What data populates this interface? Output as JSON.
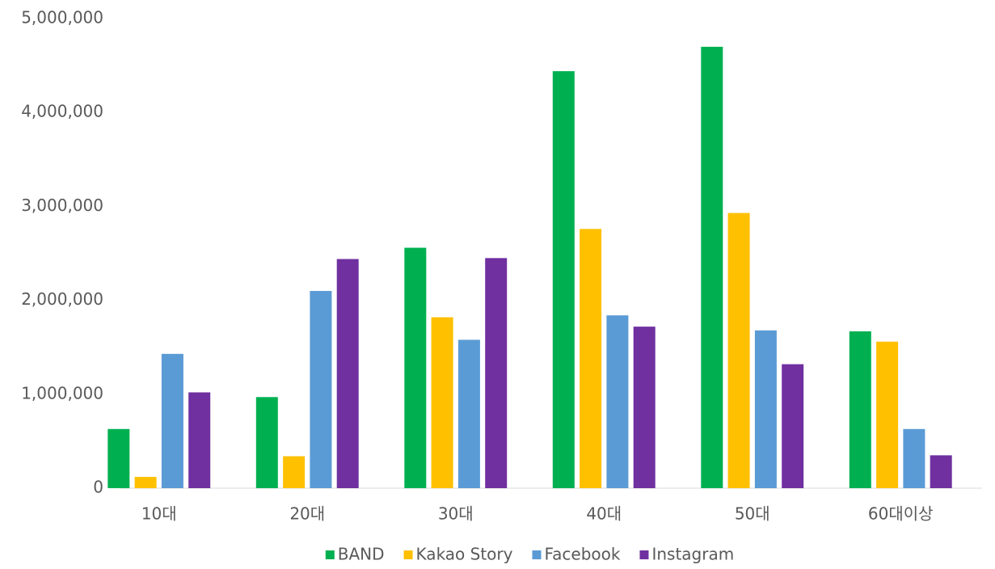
{
  "chart_data": {
    "type": "bar",
    "categories": [
      "10대",
      "20대",
      "30대",
      "40대",
      "50대",
      "60대이상"
    ],
    "series": [
      {
        "name": "BAND",
        "color": "#00b050",
        "values": [
          630000,
          970000,
          2560000,
          4440000,
          4700000,
          1670000
        ]
      },
      {
        "name": "Kakao Story",
        "color": "#ffc000",
        "values": [
          120000,
          340000,
          1820000,
          2760000,
          2930000,
          1560000
        ]
      },
      {
        "name": "Facebook",
        "color": "#5b9bd5",
        "values": [
          1430000,
          2100000,
          1580000,
          1840000,
          1680000,
          630000
        ]
      },
      {
        "name": "Instagram",
        "color": "#7030a0",
        "values": [
          1020000,
          2440000,
          2450000,
          1720000,
          1320000,
          350000
        ]
      }
    ],
    "ylim": [
      0,
      5000000
    ],
    "yticks": [
      0,
      {
        "value": 1000000,
        "label": "1,000,000"
      },
      {
        "value": 2000000,
        "label": "2,000,000"
      },
      {
        "value": 3000000,
        "label": "3,000,000"
      },
      {
        "value": 4000000,
        "label": "4,000,000"
      },
      {
        "value": 5000000,
        "label": "5,000,000"
      }
    ],
    "grid": false,
    "legend": "bottom"
  }
}
